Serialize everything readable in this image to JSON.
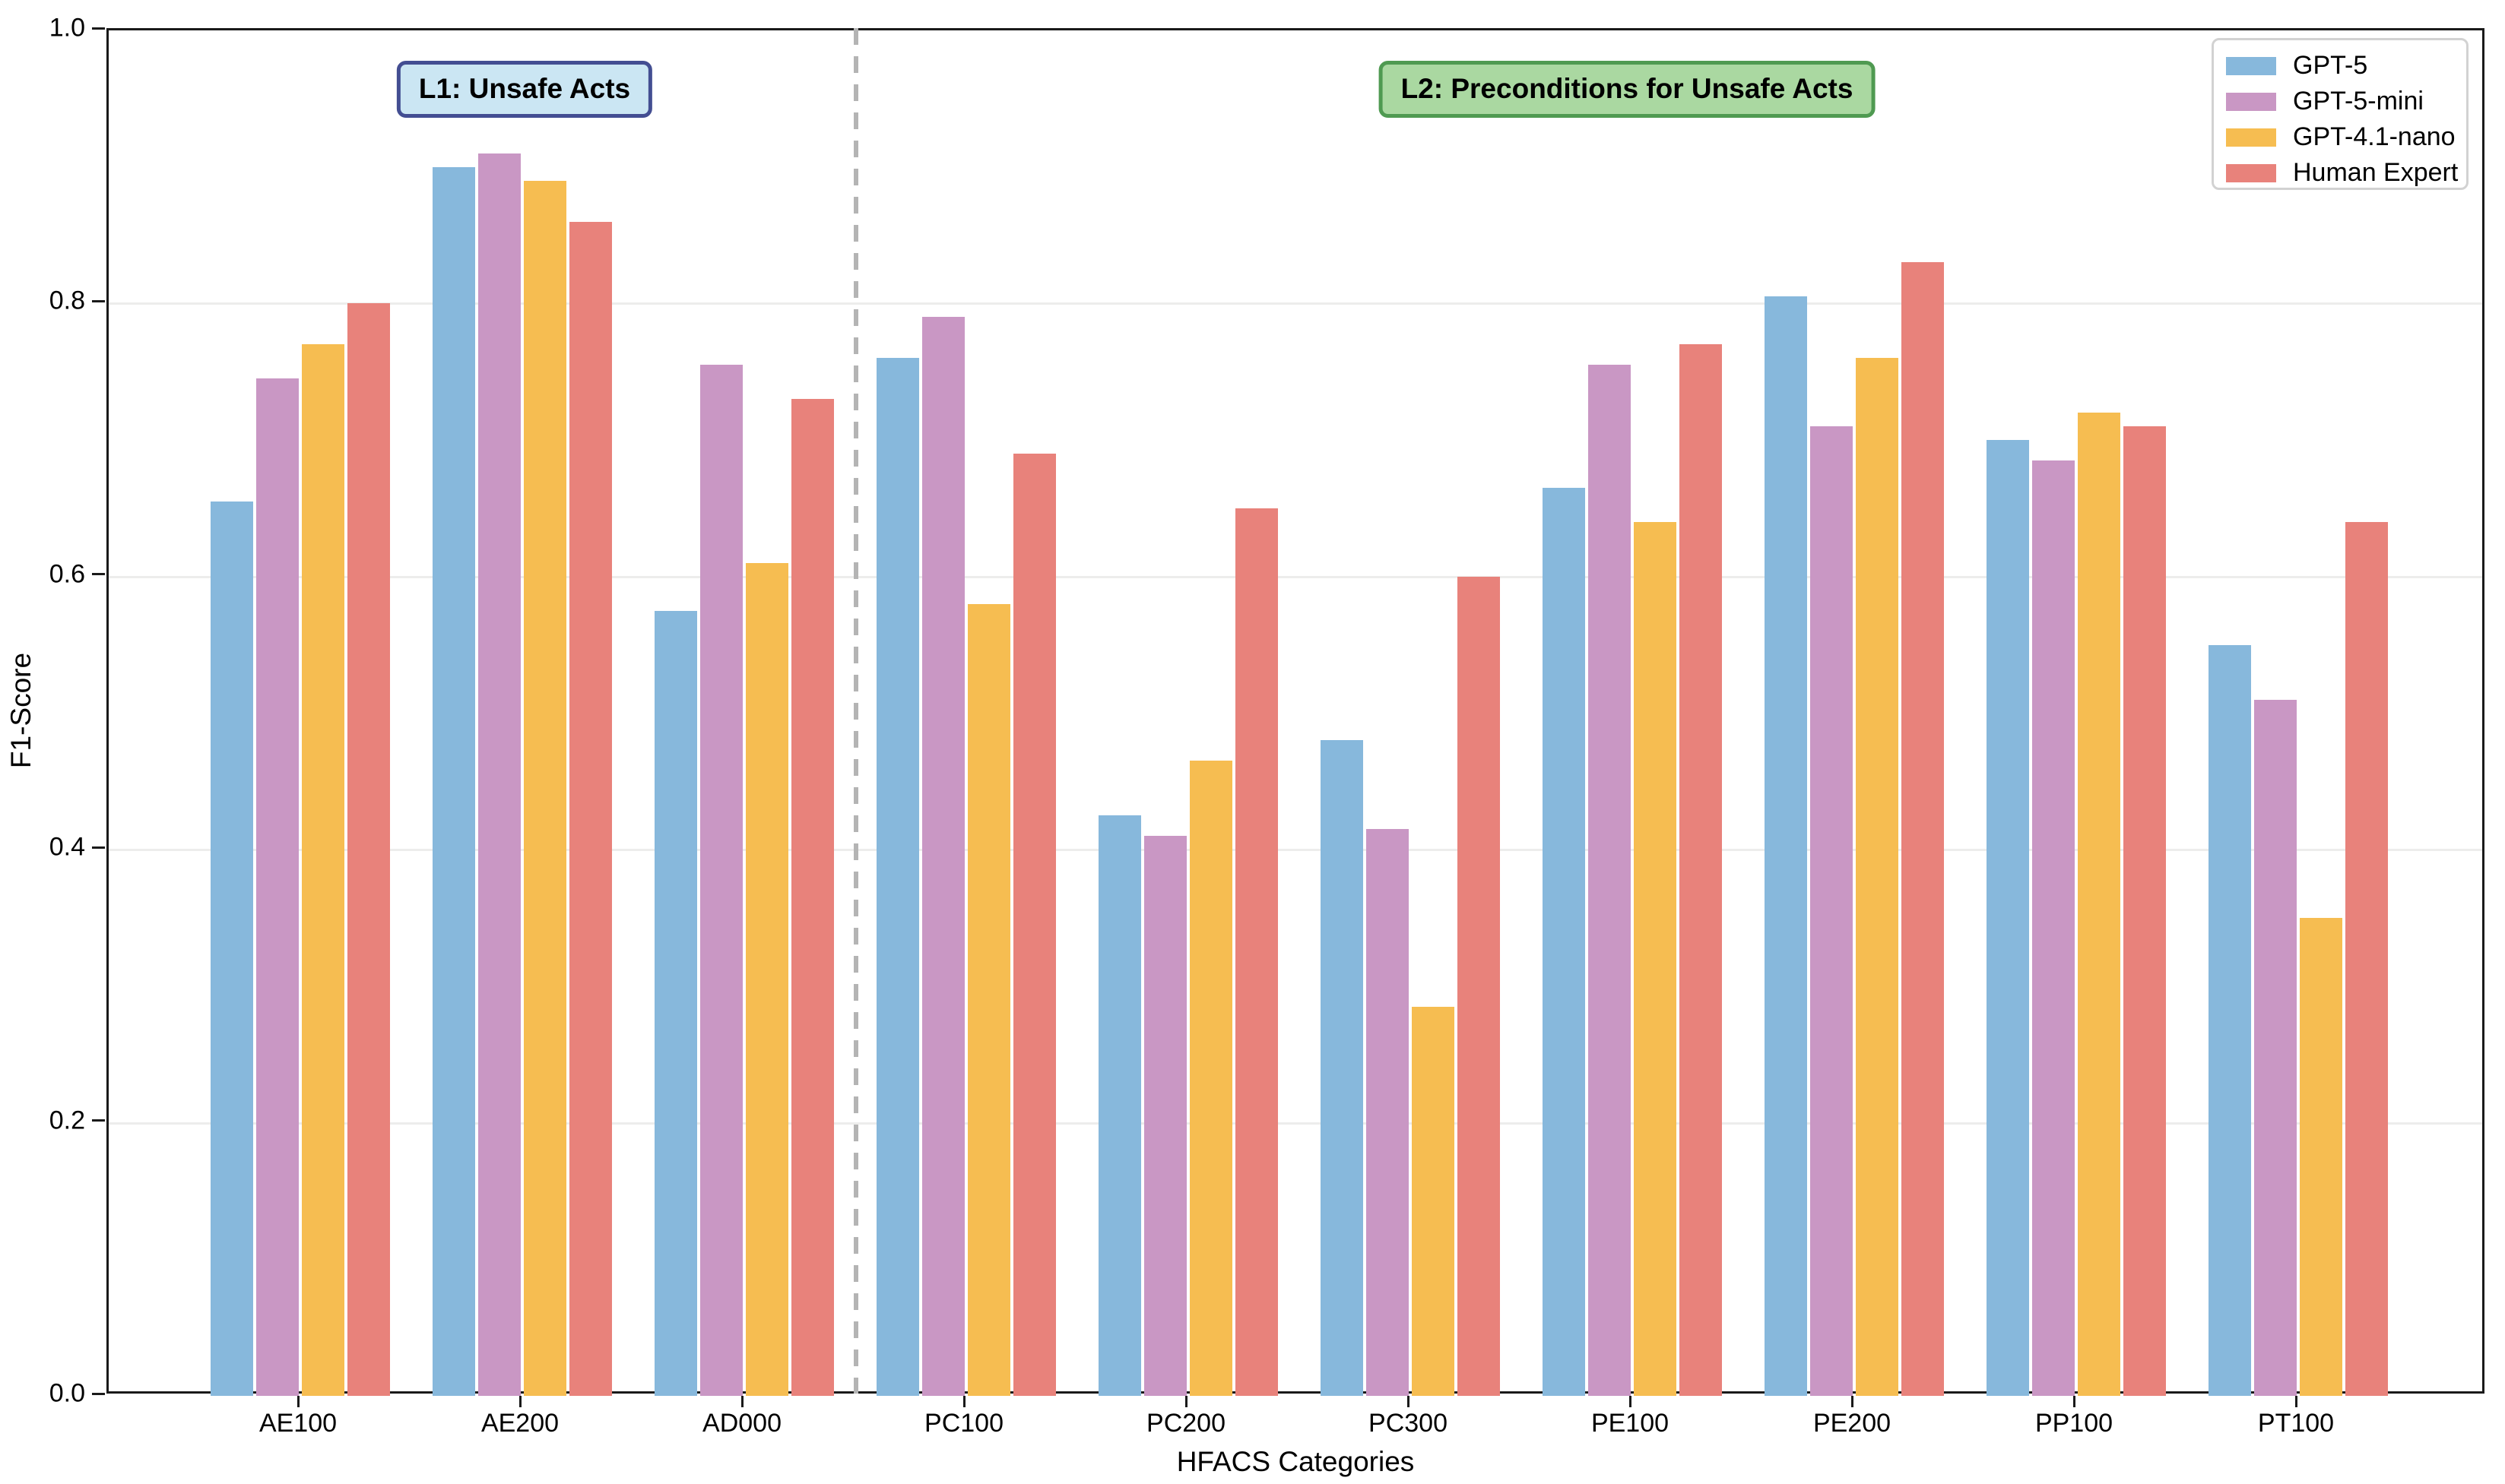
{
  "figure": {
    "background": "#ffffff",
    "spine_color": "#1a1a1a",
    "gridline_color": "#ededec"
  },
  "legend": {
    "position": "upper right",
    "background": "#ffffff",
    "border_color": "#d2d2d2"
  },
  "chart_data": {
    "type": "bar",
    "title": "",
    "xlabel": "HFACS Categories",
    "ylabel": "F1-Score",
    "ylim": [
      0.0,
      1.0
    ],
    "yticks": [
      0.0,
      0.2,
      0.4,
      0.6,
      0.8,
      1.0
    ],
    "grid": true,
    "legend_position": "upper right",
    "categories": [
      "AE100",
      "AE200",
      "AD000",
      "PC100",
      "PC200",
      "PC300",
      "PE100",
      "PE200",
      "PP100",
      "PT100"
    ],
    "series": [
      {
        "name": "GPT-5",
        "color": "#87b8dc",
        "values": [
          0.655,
          0.9,
          0.575,
          0.76,
          0.425,
          0.48,
          0.665,
          0.805,
          0.7,
          0.55
        ]
      },
      {
        "name": "GPT-5-mini",
        "color": "#c997c4",
        "values": [
          0.745,
          0.91,
          0.755,
          0.79,
          0.41,
          0.415,
          0.755,
          0.71,
          0.685,
          0.51
        ]
      },
      {
        "name": "GPT-4.1-nano",
        "color": "#f6bd51",
        "values": [
          0.77,
          0.89,
          0.61,
          0.58,
          0.465,
          0.285,
          0.64,
          0.76,
          0.72,
          0.35
        ]
      },
      {
        "name": "Human Expert",
        "color": "#e8827b",
        "values": [
          0.8,
          0.86,
          0.73,
          0.69,
          0.65,
          0.6,
          0.77,
          0.83,
          0.71,
          0.64
        ]
      }
    ],
    "separator": {
      "after_category": "AD000",
      "style": "dashed",
      "color": "#b4b4b4"
    },
    "group_labels": [
      {
        "text": "L1: Unsafe Acts",
        "fill": "#cbe6f3",
        "border": "#434e92",
        "over_categories": [
          "AE100",
          "AE200",
          "AD000"
        ]
      },
      {
        "text": "L2: Preconditions for Unsafe Acts",
        "fill": "#aad8a1",
        "border": "#4f9a51",
        "over_categories": [
          "PC100",
          "PC200",
          "PC300",
          "PE100",
          "PE200",
          "PP100",
          "PT100"
        ]
      }
    ]
  }
}
